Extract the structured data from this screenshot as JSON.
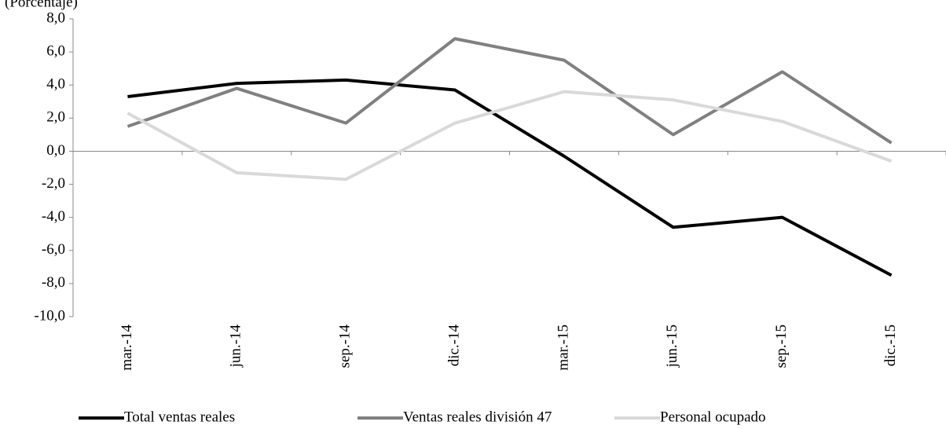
{
  "chart_data": {
    "type": "line",
    "y_label": "(Porcentaje)",
    "categories": [
      "mar.-14",
      "jun.-14",
      "sep.-14",
      "dic.-14",
      "mar.-15",
      "jun.-15",
      "sep.-15",
      "dic.-15"
    ],
    "series": [
      {
        "name": "Total ventas reales",
        "color": "#000000",
        "values": [
          3.3,
          4.1,
          4.3,
          3.7,
          -0.3,
          -4.6,
          -4.0,
          -7.5
        ]
      },
      {
        "name": "Ventas reales división 47",
        "color": "#808080",
        "values": [
          1.5,
          3.8,
          1.7,
          6.8,
          5.5,
          1.0,
          4.8,
          0.5
        ]
      },
      {
        "name": "Personal ocupado",
        "color": "#d9d9d9",
        "values": [
          2.3,
          -1.3,
          -1.7,
          1.7,
          3.6,
          3.1,
          1.8,
          -0.6
        ]
      }
    ],
    "ylim": [
      -10,
      8
    ],
    "yticks": [
      {
        "value": -10,
        "label": "-10,0"
      },
      {
        "value": -8,
        "label": "-8,0"
      },
      {
        "value": -6,
        "label": "-6,0"
      },
      {
        "value": -4,
        "label": "-4,0"
      },
      {
        "value": -2,
        "label": "-2,0"
      },
      {
        "value": 0,
        "label": "0,0"
      },
      {
        "value": 2,
        "label": "2,0"
      },
      {
        "value": 4,
        "label": "4,0"
      },
      {
        "value": 6,
        "label": "6,0"
      },
      {
        "value": 8,
        "label": "8,0"
      }
    ],
    "grid": false
  }
}
